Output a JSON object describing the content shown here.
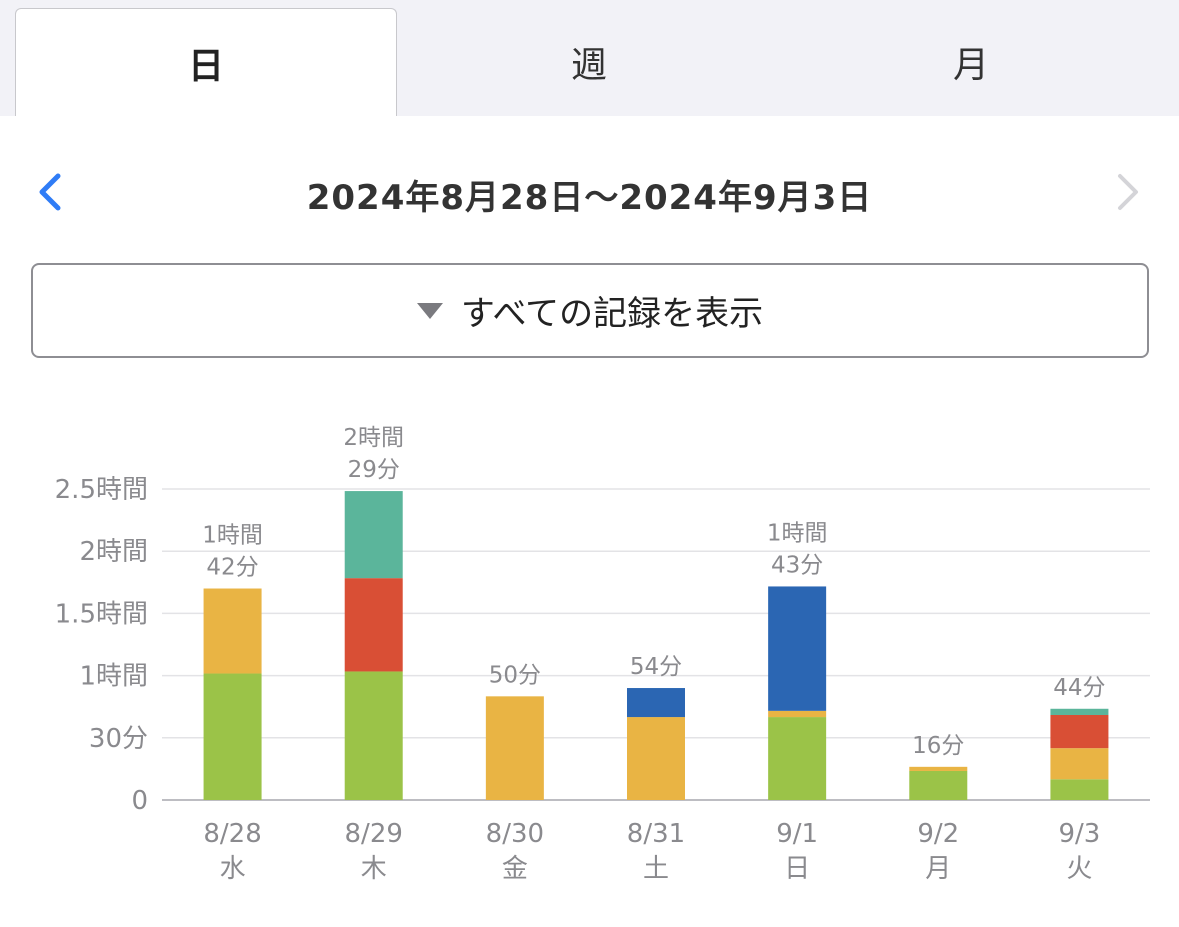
{
  "tabs": [
    {
      "label": "日",
      "active": true
    },
    {
      "label": "週",
      "active": false
    },
    {
      "label": "月",
      "active": false
    }
  ],
  "nav": {
    "title": "2024年8月28日〜2024年9月3日",
    "prev_icon": "chevron-left-icon",
    "next_icon": "chevron-right-icon"
  },
  "filter": {
    "label": "すべての記録を表示",
    "icon": "triangle-down-icon"
  },
  "colors": {
    "accent": "#2f7cf6",
    "green": "#9bc348",
    "yellow": "#e9b444",
    "red": "#d94f35",
    "teal": "#5bb59b",
    "blue": "#2b66b3"
  },
  "chart_data": {
    "type": "bar",
    "stacked": true,
    "unit": "minutes",
    "y_ticks": [
      {
        "value": 0,
        "label": "0"
      },
      {
        "value": 30,
        "label": "30分"
      },
      {
        "value": 60,
        "label": "1時間"
      },
      {
        "value": 90,
        "label": "1.5時間"
      },
      {
        "value": 120,
        "label": "2時間"
      },
      {
        "value": 150,
        "label": "2.5時間"
      }
    ],
    "ylim": [
      0,
      150
    ],
    "grid": true,
    "categories": [
      {
        "date": "8/28",
        "weekday": "水"
      },
      {
        "date": "8/29",
        "weekday": "木"
      },
      {
        "date": "8/30",
        "weekday": "金"
      },
      {
        "date": "8/31",
        "weekday": "土"
      },
      {
        "date": "9/1",
        "weekday": "日"
      },
      {
        "date": "9/2",
        "weekday": "月"
      },
      {
        "date": "9/3",
        "weekday": "火"
      }
    ],
    "totals": [
      [
        "1時間",
        "42分"
      ],
      [
        "2時間",
        "29分"
      ],
      [
        "50分"
      ],
      [
        "54分"
      ],
      [
        "1時間",
        "43分"
      ],
      [
        "16分"
      ],
      [
        "44分"
      ]
    ],
    "series": [
      {
        "color": "#9bc348",
        "values": [
          61,
          62,
          0,
          0,
          40,
          14,
          10
        ]
      },
      {
        "color": "#e9b444",
        "values": [
          41,
          0,
          50,
          40,
          3,
          2,
          15
        ]
      },
      {
        "color": "#d94f35",
        "values": [
          0,
          45,
          0,
          0,
          0,
          0,
          16
        ]
      },
      {
        "color": "#5bb59b",
        "values": [
          0,
          42,
          0,
          0,
          0,
          0,
          3
        ]
      },
      {
        "color": "#2b66b3",
        "values": [
          0,
          0,
          0,
          14,
          60,
          0,
          0
        ]
      }
    ]
  }
}
